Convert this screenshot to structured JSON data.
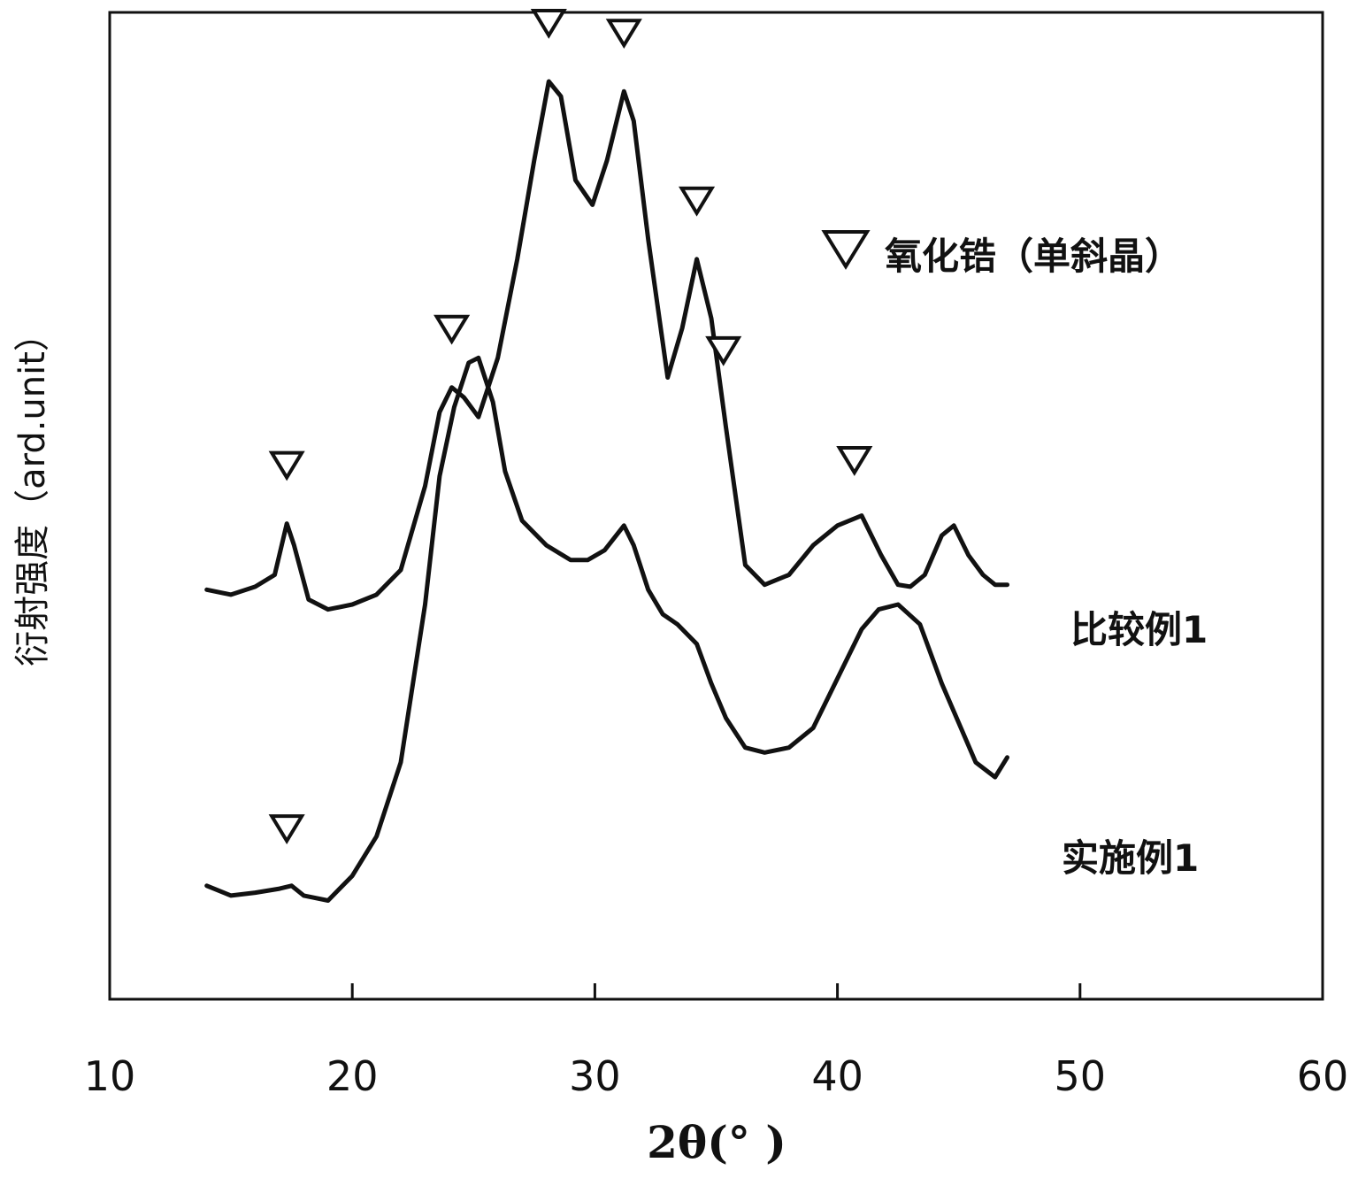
{
  "chart_data": {
    "type": "line",
    "title": "",
    "xlabel": "2θ(° )",
    "ylabel": "衍射强度（ard.unit）",
    "xlim": [
      10,
      60
    ],
    "x_ticks": [
      10,
      20,
      30,
      40,
      50,
      60
    ],
    "ylim": [
      0,
      100
    ],
    "grid": false,
    "legend": {
      "marker": "open-down-triangle",
      "label": "氧化锆（单斜晶）",
      "position": "top-right"
    },
    "series": [
      {
        "name": "比较例1",
        "x": [
          14,
          15,
          16,
          16.8,
          17.3,
          17.6,
          18.2,
          19,
          20,
          21,
          22,
          23,
          23.6,
          24.1,
          24.6,
          25.2,
          26,
          26.8,
          27.5,
          28.1,
          28.6,
          29.2,
          29.9,
          30.5,
          31.2,
          31.6,
          32.2,
          33,
          33.6,
          34.2,
          34.8,
          35.4,
          36.2,
          37,
          38,
          39,
          40,
          41,
          41.8,
          42.5,
          43,
          43.6,
          44.3,
          44.8,
          45.4,
          46,
          46.5,
          47
        ],
        "y": [
          41.5,
          41,
          41.8,
          43,
          48.2,
          46,
          40.5,
          39.5,
          40,
          41,
          43.5,
          52,
          59.5,
          62,
          61,
          59,
          65,
          75,
          85,
          93,
          91.5,
          83,
          80.5,
          85,
          92,
          89,
          77,
          63,
          68,
          75,
          69,
          58,
          44,
          42,
          43,
          46,
          48,
          49,
          45,
          42,
          41.8,
          43,
          47,
          48,
          45,
          43,
          42,
          42
        ]
      },
      {
        "name": "实施例1",
        "x": [
          14,
          15,
          16,
          17,
          17.5,
          18,
          19,
          20,
          21,
          22,
          23,
          23.6,
          24.2,
          24.8,
          25.2,
          25.8,
          26.3,
          27,
          28,
          29,
          29.7,
          30.4,
          31.2,
          31.6,
          32.2,
          32.8,
          33.4,
          34.2,
          34.8,
          35.4,
          36.2,
          37,
          38,
          39,
          40,
          41,
          41.7,
          42.5,
          43.4,
          44.3,
          45,
          45.7,
          46.5,
          47
        ],
        "y": [
          11.5,
          10.5,
          10.8,
          11.2,
          11.5,
          10.5,
          10,
          12.5,
          16.5,
          24,
          40,
          53,
          60,
          64.5,
          65,
          60.5,
          53.5,
          48.5,
          46,
          44.5,
          44.5,
          45.5,
          48,
          46,
          41.5,
          39,
          38,
          36,
          32,
          28.5,
          25.5,
          25,
          25.5,
          27.5,
          32.5,
          37.5,
          39.5,
          40,
          38,
          32,
          28,
          24,
          22.5,
          24.5
        ]
      }
    ],
    "markers_series_1": [
      17.3,
      24.1,
      28.1,
      31.2,
      34.2,
      35.3,
      40.7
    ],
    "markers_series_2": [
      17.3
    ]
  }
}
